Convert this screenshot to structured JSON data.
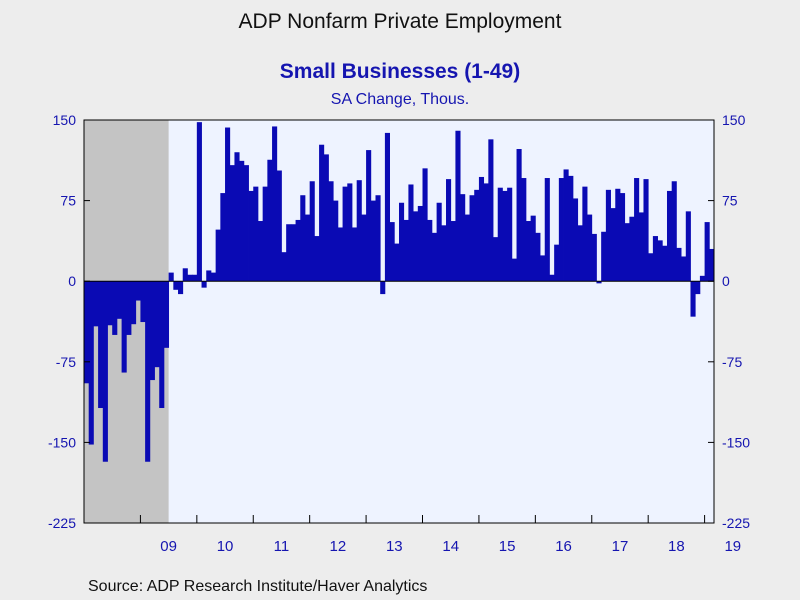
{
  "header": {
    "title": "ADP Nonfarm Private Employment",
    "subtitle": "Small Businesses (1-49)",
    "units": "SA Change, Thous."
  },
  "footer": {
    "source": "Source:  ADP Research Institute/Haver Analytics"
  },
  "colors": {
    "bar": "#0a0ab4",
    "plot_bg": "#eef3ff",
    "recession_shade": "#c4c4c4",
    "text": "#1515b0"
  },
  "chart_data": {
    "type": "bar",
    "title": "Small Businesses (1-49)",
    "subtitle": "SA Change, Thous.",
    "ylim": [
      -225,
      150
    ],
    "yticks": [
      150,
      75,
      0,
      -75,
      -150,
      -225
    ],
    "xtick_labels": [
      "09",
      "10",
      "11",
      "12",
      "13",
      "14",
      "15",
      "16",
      "17",
      "18",
      "19"
    ],
    "grid": false,
    "recession_shading": {
      "start": "2008-01",
      "end": "2009-06"
    },
    "x_start": "2008-01",
    "frequency": "monthly",
    "values": [
      -95,
      -152,
      -42,
      -118,
      -168,
      -41,
      -50,
      -35,
      -85,
      -50,
      -40,
      -18,
      -38,
      -168,
      -92,
      -80,
      -118,
      -62,
      8,
      -8,
      -12,
      12,
      6,
      6,
      148,
      -6,
      10,
      8,
      48,
      82,
      143,
      108,
      120,
      112,
      108,
      84,
      88,
      56,
      88,
      113,
      144,
      103,
      27,
      53,
      53,
      57,
      80,
      62,
      93,
      42,
      127,
      118,
      93,
      75,
      50,
      88,
      91,
      50,
      94,
      62,
      122,
      75,
      80,
      -12,
      138,
      55,
      35,
      73,
      57,
      90,
      65,
      70,
      105,
      57,
      45,
      73,
      52,
      95,
      56,
      140,
      81,
      62,
      80,
      85,
      97,
      91,
      132,
      41,
      87,
      84,
      87,
      21,
      123,
      96,
      56,
      61,
      45,
      24,
      96,
      6,
      34,
      96,
      104,
      98,
      77,
      52,
      88,
      62,
      44,
      -2,
      46,
      85,
      68,
      86,
      82,
      54,
      60,
      96,
      64,
      95,
      26,
      42,
      38,
      33,
      84,
      93,
      31,
      23,
      65,
      -33,
      -12,
      5,
      55,
      30
    ]
  }
}
